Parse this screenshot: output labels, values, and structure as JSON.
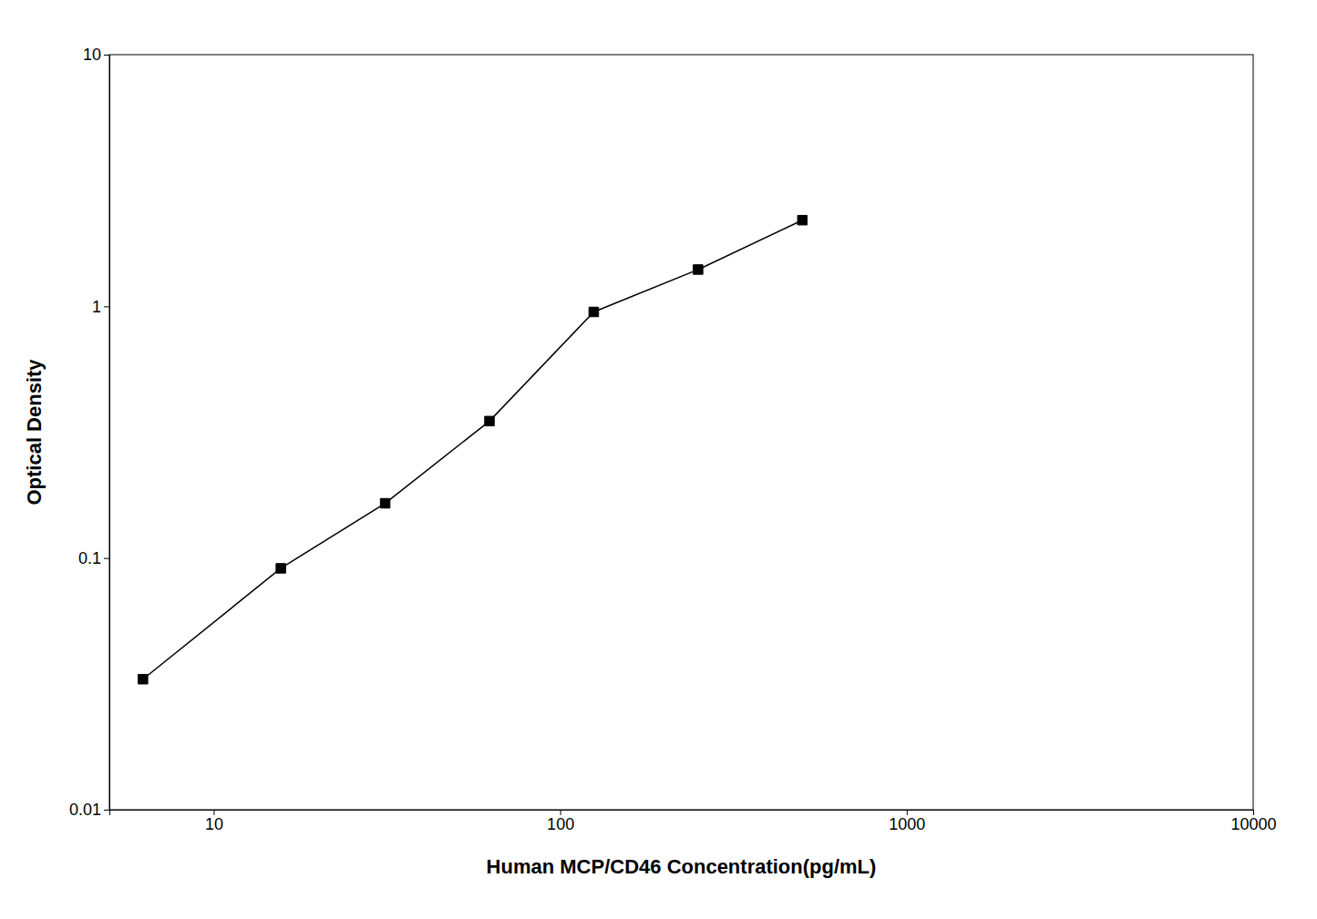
{
  "chart_data": {
    "type": "line",
    "x": [
      6.25,
      15.625,
      31.25,
      62.5,
      125,
      250,
      500
    ],
    "values": [
      0.033,
      0.091,
      0.165,
      0.35,
      0.95,
      1.4,
      2.2
    ],
    "x_label": "Human MCP/CD46 Concentration(pg/mL)",
    "y_label": "Optical Density",
    "color": "#000000",
    "marker": "square",
    "log": true,
    "grid": false,
    "xlim": [
      5,
      10000
    ],
    "ylim": [
      0.01,
      10
    ],
    "xticks": [
      10,
      100,
      1000,
      10000
    ],
    "yticks": [
      0.01,
      0.1,
      1,
      10
    ]
  }
}
